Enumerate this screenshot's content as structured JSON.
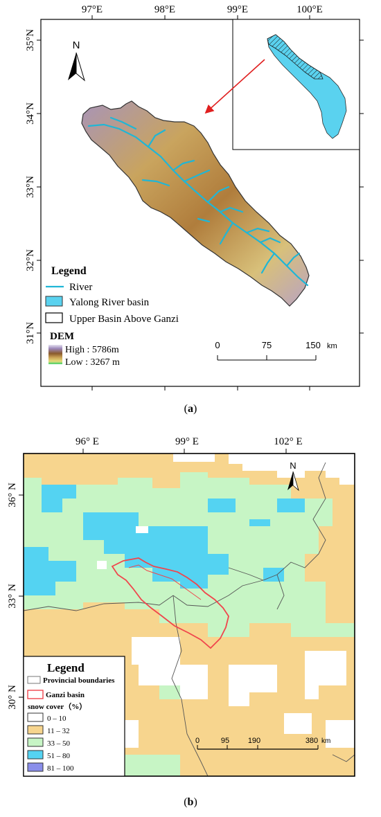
{
  "map_a": {
    "lon_labels": [
      "97°E",
      "98°E",
      "99°E",
      "100°E"
    ],
    "lat_labels": [
      "35°N",
      "34°N",
      "33°N",
      "32°N",
      "31°N"
    ],
    "north": "N",
    "legend_title": "Legend",
    "legend_items": [
      "River",
      "Yalong River basin",
      "Upper Basin Above Ganzi"
    ],
    "dem_title": "DEM",
    "dem_high": "High : 5786m",
    "dem_low": "Low : 3267 m",
    "scale_ticks": [
      "0",
      "75",
      "150"
    ],
    "scale_unit": "km",
    "colors": {
      "river": "#1fb6d6",
      "basin_fill": "#5ad2ef",
      "arrow": "#e01f1f"
    }
  },
  "caption_a": {
    "open": "(",
    "letter": "a",
    "close": ")"
  },
  "map_b": {
    "lon_labels": [
      "96° E",
      "99° E",
      "102° E"
    ],
    "lat_labels": [
      "36° N",
      "33° N",
      "30° N"
    ],
    "north": "N",
    "legend_title": "Legend",
    "legend_items": [
      "Provincial boundaries",
      "Ganzi basin"
    ],
    "snow_title": "snow cover（%）",
    "classes": [
      {
        "label": "0 – 10",
        "color": "#ffffff"
      },
      {
        "label": "11 – 32",
        "color": "#f7d58e"
      },
      {
        "label": "33 – 50",
        "color": "#c7f5c5"
      },
      {
        "label": "51 – 80",
        "color": "#54d3f2"
      },
      {
        "label": "81 – 100",
        "color": "#8a8eea"
      }
    ],
    "scale_ticks": [
      "0",
      "95",
      "190",
      "380"
    ],
    "scale_unit": "km",
    "colors": {
      "basin_outline": "#f0454c"
    }
  },
  "caption_b": {
    "open": "(",
    "letter": "b",
    "close": ")"
  }
}
